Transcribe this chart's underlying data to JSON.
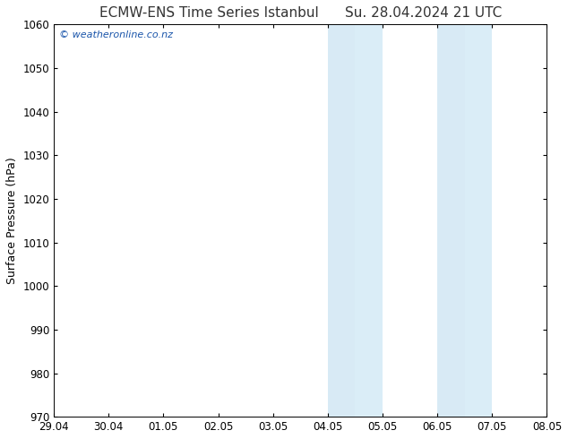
{
  "title_left": "ECMW-ENS Time Series Istanbul",
  "title_right": "Su. 28.04.2024 21 UTC",
  "ylabel": "Surface Pressure (hPa)",
  "ylim": [
    970,
    1060
  ],
  "yticks": [
    970,
    980,
    990,
    1000,
    1010,
    1020,
    1030,
    1040,
    1050,
    1060
  ],
  "x_tick_labels": [
    "29.04",
    "30.04",
    "01.05",
    "02.05",
    "03.05",
    "04.05",
    "05.05",
    "06.05",
    "07.05",
    "08.05"
  ],
  "x_tick_positions": [
    0,
    1,
    2,
    3,
    4,
    5,
    6,
    7,
    8,
    9
  ],
  "xlim": [
    0,
    9
  ],
  "shaded_regions": [
    {
      "x_start": 5.0,
      "x_end": 5.5,
      "color": "#d8eaf5"
    },
    {
      "x_start": 5.5,
      "x_end": 6.0,
      "color": "#daedf7"
    },
    {
      "x_start": 7.0,
      "x_end": 7.5,
      "color": "#d8eaf5"
    },
    {
      "x_start": 7.5,
      "x_end": 8.0,
      "color": "#daedf7"
    }
  ],
  "watermark_text": "© weatheronline.co.nz",
  "watermark_color": "#1a55aa",
  "background_color": "#ffffff",
  "plot_bg_color": "#ffffff",
  "border_color": "#000000",
  "title_color": "#333333",
  "title_fontsize": 11,
  "axis_label_fontsize": 9,
  "tick_label_fontsize": 8.5,
  "figsize": [
    6.34,
    4.9
  ],
  "dpi": 100
}
